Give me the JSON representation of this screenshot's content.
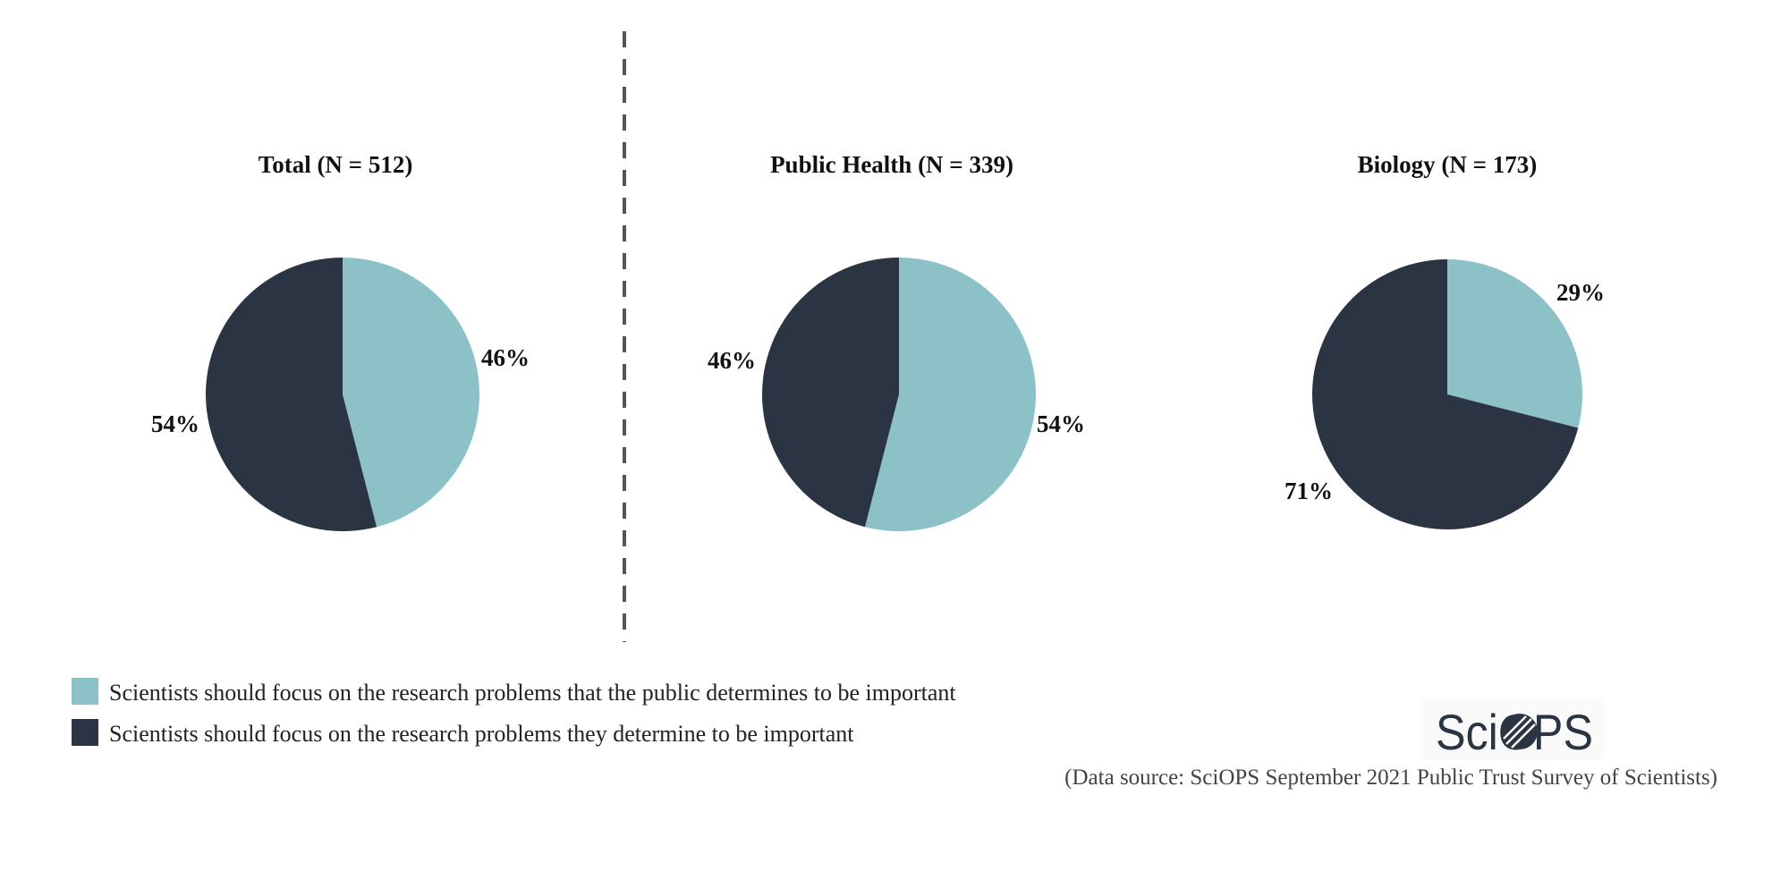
{
  "chart_data": [
    {
      "type": "pie",
      "title": "Total (N = 512)",
      "slices": [
        {
          "series": "public",
          "label": "46%",
          "value": 46
        },
        {
          "series": "scientists",
          "label": "54%",
          "value": 54
        }
      ]
    },
    {
      "type": "pie",
      "title": "Public Health (N = 339)",
      "slices": [
        {
          "series": "public",
          "label": "54%",
          "value": 54
        },
        {
          "series": "scientists",
          "label": "46%",
          "value": 46
        }
      ]
    },
    {
      "type": "pie",
      "title": "Biology (N = 173)",
      "slices": [
        {
          "series": "public",
          "label": "29%",
          "value": 29
        },
        {
          "series": "scientists",
          "label": "71%",
          "value": 71
        }
      ]
    }
  ],
  "legend": [
    {
      "series": "public",
      "label": "Scientists should focus on the research problems that the public determines to be important",
      "color": "#8bc1c7"
    },
    {
      "series": "scientists",
      "label": "Scientists should focus on the research problems they determine to be important",
      "color": "#2b3442"
    }
  ],
  "logo": {
    "text": "SciOPS"
  },
  "source": "(Data source: SciOPS September 2021 Public Trust Survey of Scientists)"
}
